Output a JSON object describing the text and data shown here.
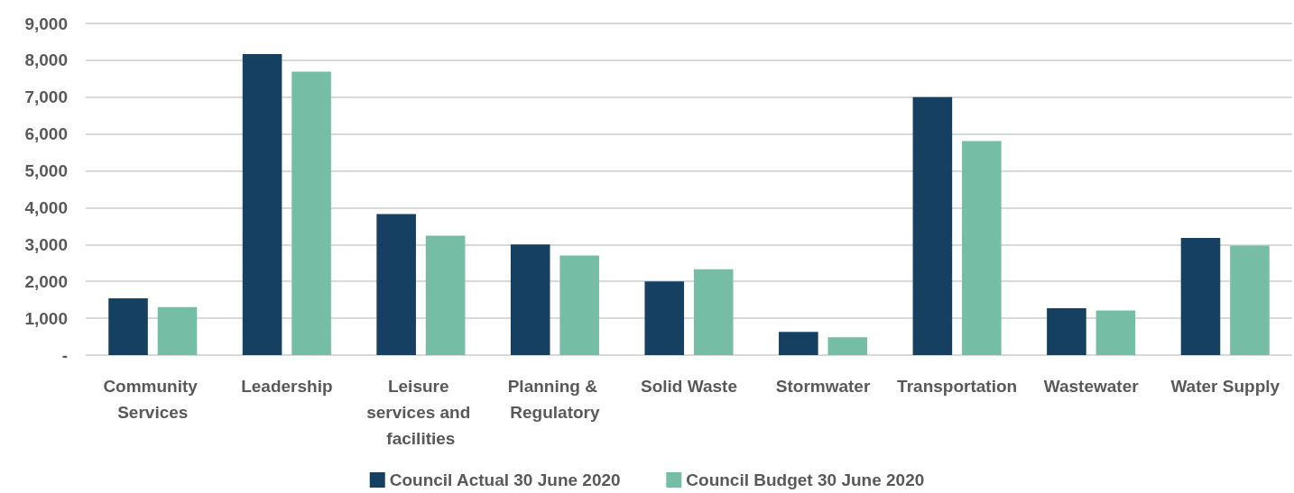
{
  "chart_data": {
    "type": "bar",
    "categories": [
      "Community Services",
      "Leadership",
      "Leisure services and facilities",
      "Planning & Regulatory",
      "Solid Waste",
      "Stormwater",
      "Transportation",
      "Wastewater",
      "Water Supply"
    ],
    "series": [
      {
        "name": "Council Actual 30 June 2020",
        "color": "#154062",
        "values": [
          1540,
          8170,
          3830,
          3000,
          2000,
          630,
          7000,
          1270,
          3180
        ]
      },
      {
        "name": "Council Budget 30 June 2020",
        "color": "#76bda6",
        "values": [
          1300,
          7690,
          3240,
          2700,
          2330,
          480,
          5810,
          1210,
          2970
        ]
      }
    ],
    "ylim": [
      0,
      9000
    ],
    "yticks": [
      {
        "value": 0,
        "label": "-"
      },
      {
        "value": 1000,
        "label": "1,000"
      },
      {
        "value": 2000,
        "label": "2,000"
      },
      {
        "value": 3000,
        "label": "3,000"
      },
      {
        "value": 4000,
        "label": "4,000"
      },
      {
        "value": 5000,
        "label": "5,000"
      },
      {
        "value": 6000,
        "label": "6,000"
      },
      {
        "value": 7000,
        "label": "7,000"
      },
      {
        "value": 8000,
        "label": "8,000"
      },
      {
        "value": 9000,
        "label": "9,000"
      }
    ],
    "grid": "y",
    "legend": "bottom"
  }
}
